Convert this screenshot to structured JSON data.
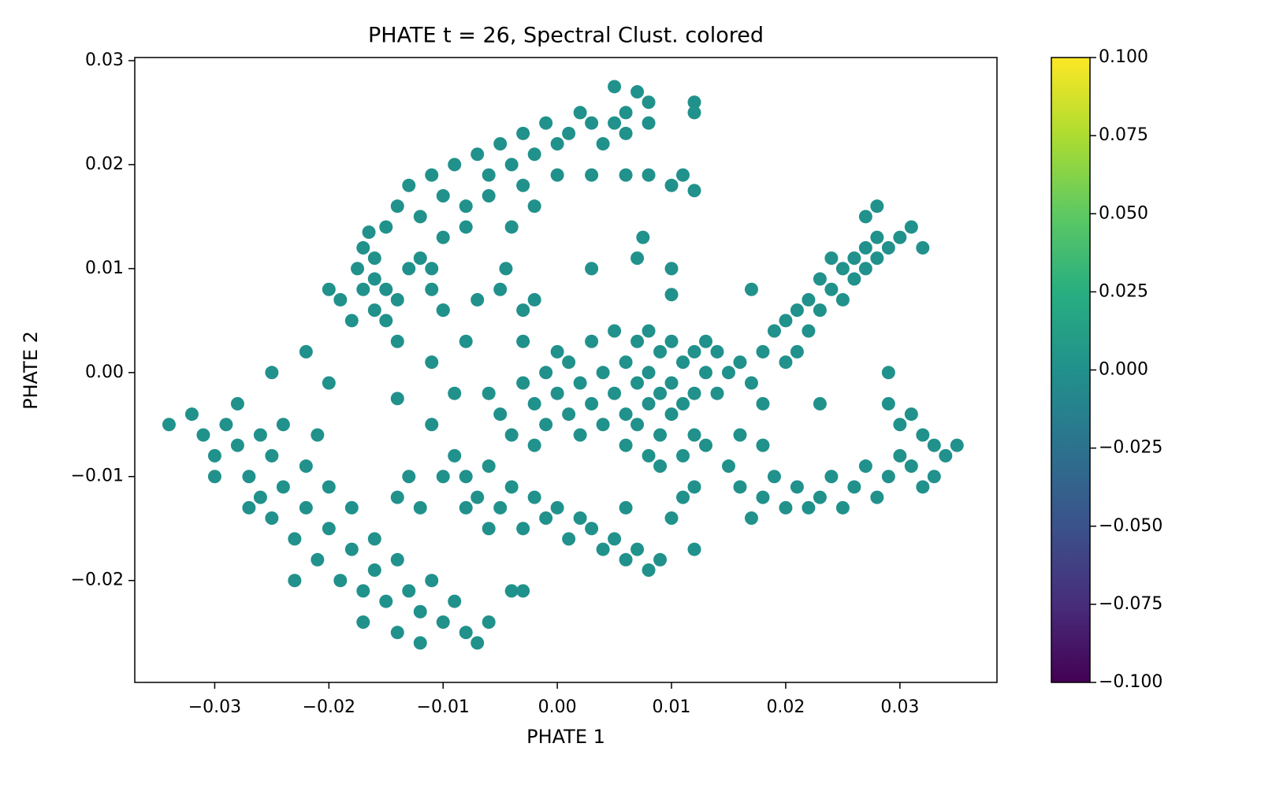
{
  "chart_data": {
    "type": "scatter",
    "title": "PHATE t = 26, Spectral Clust. colored",
    "xlabel": "PHATE 1",
    "ylabel": "PHATE 2",
    "xlim": [
      -0.037,
      0.0385
    ],
    "ylim": [
      -0.0298,
      0.0303
    ],
    "xticks": [
      {
        "value": -0.03,
        "label": "−0.03"
      },
      {
        "value": -0.02,
        "label": "−0.02"
      },
      {
        "value": -0.01,
        "label": "−0.01"
      },
      {
        "value": 0,
        "label": "0.00"
      },
      0.01,
      0.02,
      0.03
    ],
    "yticks": [
      {
        "value": -0.02,
        "label": "−0.02"
      },
      {
        "value": -0.01,
        "label": "−0.01"
      },
      {
        "value": 0,
        "label": "0.00"
      },
      0.01,
      0.02,
      0.03
    ],
    "colorbar": {
      "lim": [
        -0.1,
        0.1
      ],
      "ticks": [
        {
          "value": -0.1,
          "label": "−0.100"
        },
        {
          "value": -0.075,
          "label": "−0.075"
        },
        {
          "value": -0.05,
          "label": "−0.050"
        },
        {
          "value": -0.025,
          "label": "−0.025"
        },
        {
          "value": 0,
          "label": "0.000"
        },
        0.025,
        {
          "value": 0.05,
          "label": "0.050"
        },
        0.075,
        {
          "value": 0.1,
          "label": "0.100"
        }
      ]
    },
    "series": [
      {
        "color": "#21918c",
        "x": [
          -0.0165,
          -0.017,
          -0.016,
          -0.0175,
          -0.016,
          -0.015,
          -0.017,
          -0.014,
          -0.016,
          -0.015,
          -0.014,
          -0.015,
          -0.014,
          -0.013,
          -0.012,
          -0.011,
          -0.01,
          -0.009,
          -0.008,
          -0.007,
          -0.006,
          -0.005,
          -0.004,
          -0.003,
          -0.002,
          -0.001,
          0,
          0.001,
          0.002,
          0.003,
          0.004,
          0.005,
          0.006,
          0.007,
          0.008,
          0.006,
          0.008,
          0.012,
          0.012,
          0.005,
          -0.01,
          -0.012,
          -0.008,
          -0.006,
          -0.003,
          0,
          0.003,
          0.006,
          0.008,
          0.01,
          0.011,
          0.012,
          -0.013,
          -0.011,
          -0.01,
          -0.02,
          -0.019,
          -0.018,
          -0.004,
          -0.002,
          -0.003,
          -0.002,
          -0.005,
          0.003,
          0.0075,
          0.007,
          0.01,
          0.01,
          -0.007,
          -0.01,
          -0.008,
          -0.011,
          -0.014,
          -0.011,
          -0.009,
          -0.022,
          -0.025,
          -0.02,
          -0.011,
          -0.0045,
          -0.006,
          -0.005,
          -0.004,
          -0.003,
          -0.003,
          -0.002,
          -0.001,
          -0.001,
          0,
          0,
          0.001,
          0.001,
          0.002,
          0.002,
          0.003,
          0.003,
          0.004,
          0.004,
          0.005,
          0.005,
          0.006,
          0.006,
          0.006,
          0.007,
          0.007,
          0.007,
          0.008,
          0.008,
          0.008,
          0.008,
          0.009,
          0.009,
          0.009,
          0.01,
          0.01,
          0.01,
          0.011,
          0.011,
          0.012,
          0.012,
          0.013,
          0.013,
          0.014,
          0.014,
          0.015,
          0.012,
          0.011,
          0.013,
          0.009,
          -0.002,
          0.016,
          0.017,
          0.018,
          0.018,
          0.019,
          0.02,
          0.02,
          0.021,
          0.021,
          0.022,
          0.022,
          0.023,
          0.023,
          0.024,
          0.024,
          0.025,
          0.025,
          0.026,
          0.026,
          0.027,
          0.027,
          0.028,
          0.028,
          0.029,
          0.03,
          0.031,
          0.032,
          0.028,
          0.027,
          0.017,
          0.029,
          0.03,
          0.031,
          0.032,
          0.033,
          0.034,
          0.035,
          0.033,
          0.032,
          0.031,
          0.03,
          0.029,
          0.028,
          0.027,
          0.026,
          0.025,
          0.024,
          0.023,
          0.022,
          0.021,
          0.02,
          0.019,
          0.018,
          0.017,
          0.016,
          0.015,
          0.016,
          0.018,
          0.023,
          0.029,
          -0.009,
          -0.008,
          -0.007,
          -0.006,
          -0.005,
          -0.004,
          -0.003,
          -0.002,
          -0.001,
          0,
          0.001,
          0.002,
          0.003,
          0.004,
          0.005,
          0.006,
          0.007,
          0.008,
          0.009,
          0.01,
          0.011,
          0.012,
          -0.006,
          -0.008,
          -0.01,
          -0.012,
          -0.013,
          -0.014,
          0.012,
          0.006,
          -0.034,
          -0.032,
          -0.031,
          -0.03,
          -0.029,
          -0.028,
          -0.028,
          -0.027,
          -0.026,
          -0.026,
          -0.025,
          -0.025,
          -0.024,
          -0.024,
          -0.023,
          -0.022,
          -0.022,
          -0.021,
          -0.021,
          -0.02,
          -0.02,
          -0.019,
          -0.018,
          -0.018,
          -0.017,
          -0.016,
          -0.016,
          -0.015,
          -0.014,
          -0.014,
          -0.013,
          -0.012,
          -0.011,
          -0.01,
          -0.009,
          -0.008,
          -0.007,
          -0.006,
          -0.004,
          -0.003,
          -0.03,
          -0.027,
          -0.023,
          -0.017,
          -0.012
        ],
        "y": [
          0.0135,
          0.012,
          0.011,
          0.01,
          0.009,
          0.008,
          0.008,
          0.007,
          0.006,
          0.005,
          0.003,
          0.014,
          0.016,
          0.018,
          0.015,
          0.019,
          0.017,
          0.02,
          0.016,
          0.021,
          0.019,
          0.022,
          0.02,
          0.023,
          0.021,
          0.024,
          0.022,
          0.023,
          0.025,
          0.024,
          0.022,
          0.024,
          0.025,
          0.027,
          0.026,
          0.023,
          0.024,
          0.025,
          0.026,
          0.0275,
          0.013,
          0.011,
          0.014,
          0.017,
          0.018,
          0.019,
          0.019,
          0.019,
          0.019,
          0.018,
          0.019,
          0.0175,
          0.01,
          0.008,
          0.006,
          0.008,
          0.007,
          0.005,
          0.014,
          0.016,
          0.006,
          0.007,
          0.008,
          0.01,
          0.013,
          0.011,
          0.01,
          0.0075,
          0.007,
          0.006,
          0.003,
          0.001,
          -0.0025,
          -0.005,
          -0.002,
          0.002,
          0,
          -0.001,
          0.01,
          0.01,
          -0.002,
          -0.004,
          -0.006,
          -0.001,
          0.003,
          -0.003,
          0,
          -0.005,
          0.002,
          -0.002,
          -0.004,
          0.001,
          -0.001,
          -0.006,
          0.003,
          -0.003,
          0,
          -0.005,
          0.004,
          -0.002,
          0.001,
          -0.004,
          -0.007,
          0.003,
          -0.001,
          -0.005,
          0.004,
          0,
          -0.003,
          -0.008,
          0.002,
          -0.002,
          -0.006,
          0.003,
          -0.001,
          -0.004,
          0.001,
          -0.003,
          0.002,
          -0.002,
          0.003,
          0,
          0.002,
          -0.002,
          0,
          -0.006,
          -0.008,
          -0.007,
          -0.009,
          -0.007,
          0.001,
          -0.001,
          0.002,
          -0.003,
          0.004,
          0.001,
          0.005,
          0.006,
          0.002,
          0.007,
          0.004,
          0.009,
          0.006,
          0.011,
          0.008,
          0.01,
          0.007,
          0.011,
          0.009,
          0.012,
          0.01,
          0.013,
          0.011,
          0.012,
          0.013,
          0.014,
          0.012,
          0.016,
          0.015,
          0.008,
          -0.003,
          -0.005,
          -0.004,
          -0.006,
          -0.007,
          -0.008,
          -0.007,
          -0.01,
          -0.011,
          -0.009,
          -0.008,
          -0.01,
          -0.012,
          -0.009,
          -0.011,
          -0.013,
          -0.01,
          -0.012,
          -0.013,
          -0.011,
          -0.013,
          -0.01,
          -0.012,
          -0.014,
          -0.011,
          -0.009,
          -0.006,
          -0.007,
          -0.003,
          0,
          -0.008,
          -0.01,
          -0.012,
          -0.009,
          -0.013,
          -0.011,
          -0.015,
          -0.012,
          -0.014,
          -0.013,
          -0.016,
          -0.014,
          -0.015,
          -0.017,
          -0.016,
          -0.018,
          -0.017,
          -0.019,
          -0.018,
          -0.014,
          -0.012,
          -0.011,
          -0.015,
          -0.013,
          -0.01,
          -0.013,
          -0.01,
          -0.012,
          -0.017,
          -0.013,
          -0.005,
          -0.004,
          -0.006,
          -0.008,
          -0.005,
          -0.003,
          -0.007,
          -0.01,
          -0.006,
          -0.012,
          -0.008,
          -0.014,
          -0.005,
          -0.011,
          -0.016,
          -0.009,
          -0.013,
          -0.006,
          -0.018,
          -0.011,
          -0.015,
          -0.02,
          -0.013,
          -0.017,
          -0.021,
          -0.016,
          -0.019,
          -0.022,
          -0.018,
          -0.025,
          -0.021,
          -0.023,
          -0.02,
          -0.024,
          -0.022,
          -0.025,
          -0.026,
          -0.024,
          -0.021,
          -0.021,
          -0.01,
          -0.013,
          -0.02,
          -0.024,
          -0.026
        ]
      }
    ]
  }
}
